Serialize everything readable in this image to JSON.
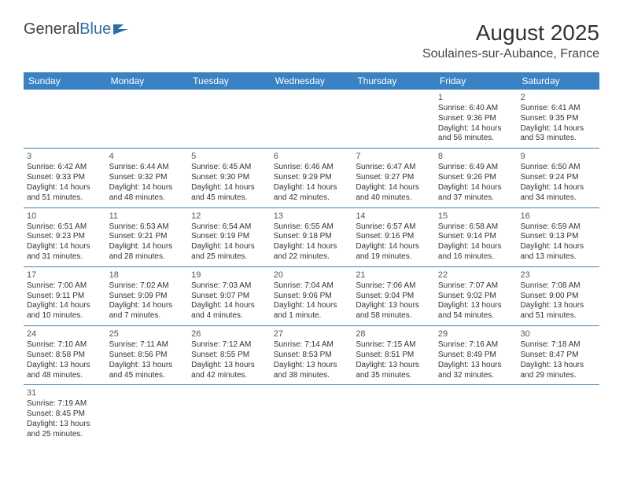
{
  "logo": {
    "part1": "General",
    "part2": "Blue"
  },
  "title": "August 2025",
  "location": "Soulaines-sur-Aubance, France",
  "colors": {
    "header_bg": "#3a82c4",
    "header_fg": "#ffffff",
    "rule": "#3a82c4",
    "text": "#333333",
    "logo_accent": "#2f6fa8"
  },
  "dayNames": [
    "Sunday",
    "Monday",
    "Tuesday",
    "Wednesday",
    "Thursday",
    "Friday",
    "Saturday"
  ],
  "weeks": [
    [
      null,
      null,
      null,
      null,
      null,
      {
        "n": "1",
        "sr": "6:40 AM",
        "ss": "9:36 PM",
        "dl1": "14 hours",
        "dl2": "and 56 minutes."
      },
      {
        "n": "2",
        "sr": "6:41 AM",
        "ss": "9:35 PM",
        "dl1": "14 hours",
        "dl2": "and 53 minutes."
      }
    ],
    [
      {
        "n": "3",
        "sr": "6:42 AM",
        "ss": "9:33 PM",
        "dl1": "14 hours",
        "dl2": "and 51 minutes."
      },
      {
        "n": "4",
        "sr": "6:44 AM",
        "ss": "9:32 PM",
        "dl1": "14 hours",
        "dl2": "and 48 minutes."
      },
      {
        "n": "5",
        "sr": "6:45 AM",
        "ss": "9:30 PM",
        "dl1": "14 hours",
        "dl2": "and 45 minutes."
      },
      {
        "n": "6",
        "sr": "6:46 AM",
        "ss": "9:29 PM",
        "dl1": "14 hours",
        "dl2": "and 42 minutes."
      },
      {
        "n": "7",
        "sr": "6:47 AM",
        "ss": "9:27 PM",
        "dl1": "14 hours",
        "dl2": "and 40 minutes."
      },
      {
        "n": "8",
        "sr": "6:49 AM",
        "ss": "9:26 PM",
        "dl1": "14 hours",
        "dl2": "and 37 minutes."
      },
      {
        "n": "9",
        "sr": "6:50 AM",
        "ss": "9:24 PM",
        "dl1": "14 hours",
        "dl2": "and 34 minutes."
      }
    ],
    [
      {
        "n": "10",
        "sr": "6:51 AM",
        "ss": "9:23 PM",
        "dl1": "14 hours",
        "dl2": "and 31 minutes."
      },
      {
        "n": "11",
        "sr": "6:53 AM",
        "ss": "9:21 PM",
        "dl1": "14 hours",
        "dl2": "and 28 minutes."
      },
      {
        "n": "12",
        "sr": "6:54 AM",
        "ss": "9:19 PM",
        "dl1": "14 hours",
        "dl2": "and 25 minutes."
      },
      {
        "n": "13",
        "sr": "6:55 AM",
        "ss": "9:18 PM",
        "dl1": "14 hours",
        "dl2": "and 22 minutes."
      },
      {
        "n": "14",
        "sr": "6:57 AM",
        "ss": "9:16 PM",
        "dl1": "14 hours",
        "dl2": "and 19 minutes."
      },
      {
        "n": "15",
        "sr": "6:58 AM",
        "ss": "9:14 PM",
        "dl1": "14 hours",
        "dl2": "and 16 minutes."
      },
      {
        "n": "16",
        "sr": "6:59 AM",
        "ss": "9:13 PM",
        "dl1": "14 hours",
        "dl2": "and 13 minutes."
      }
    ],
    [
      {
        "n": "17",
        "sr": "7:00 AM",
        "ss": "9:11 PM",
        "dl1": "14 hours",
        "dl2": "and 10 minutes."
      },
      {
        "n": "18",
        "sr": "7:02 AM",
        "ss": "9:09 PM",
        "dl1": "14 hours",
        "dl2": "and 7 minutes."
      },
      {
        "n": "19",
        "sr": "7:03 AM",
        "ss": "9:07 PM",
        "dl1": "14 hours",
        "dl2": "and 4 minutes."
      },
      {
        "n": "20",
        "sr": "7:04 AM",
        "ss": "9:06 PM",
        "dl1": "14 hours",
        "dl2": "and 1 minute."
      },
      {
        "n": "21",
        "sr": "7:06 AM",
        "ss": "9:04 PM",
        "dl1": "13 hours",
        "dl2": "and 58 minutes."
      },
      {
        "n": "22",
        "sr": "7:07 AM",
        "ss": "9:02 PM",
        "dl1": "13 hours",
        "dl2": "and 54 minutes."
      },
      {
        "n": "23",
        "sr": "7:08 AM",
        "ss": "9:00 PM",
        "dl1": "13 hours",
        "dl2": "and 51 minutes."
      }
    ],
    [
      {
        "n": "24",
        "sr": "7:10 AM",
        "ss": "8:58 PM",
        "dl1": "13 hours",
        "dl2": "and 48 minutes."
      },
      {
        "n": "25",
        "sr": "7:11 AM",
        "ss": "8:56 PM",
        "dl1": "13 hours",
        "dl2": "and 45 minutes."
      },
      {
        "n": "26",
        "sr": "7:12 AM",
        "ss": "8:55 PM",
        "dl1": "13 hours",
        "dl2": "and 42 minutes."
      },
      {
        "n": "27",
        "sr": "7:14 AM",
        "ss": "8:53 PM",
        "dl1": "13 hours",
        "dl2": "and 38 minutes."
      },
      {
        "n": "28",
        "sr": "7:15 AM",
        "ss": "8:51 PM",
        "dl1": "13 hours",
        "dl2": "and 35 minutes."
      },
      {
        "n": "29",
        "sr": "7:16 AM",
        "ss": "8:49 PM",
        "dl1": "13 hours",
        "dl2": "and 32 minutes."
      },
      {
        "n": "30",
        "sr": "7:18 AM",
        "ss": "8:47 PM",
        "dl1": "13 hours",
        "dl2": "and 29 minutes."
      }
    ],
    [
      {
        "n": "31",
        "sr": "7:19 AM",
        "ss": "8:45 PM",
        "dl1": "13 hours",
        "dl2": "and 25 minutes."
      },
      null,
      null,
      null,
      null,
      null,
      null
    ]
  ],
  "labels": {
    "sunrise": "Sunrise: ",
    "sunset": "Sunset: ",
    "daylight": "Daylight: "
  }
}
